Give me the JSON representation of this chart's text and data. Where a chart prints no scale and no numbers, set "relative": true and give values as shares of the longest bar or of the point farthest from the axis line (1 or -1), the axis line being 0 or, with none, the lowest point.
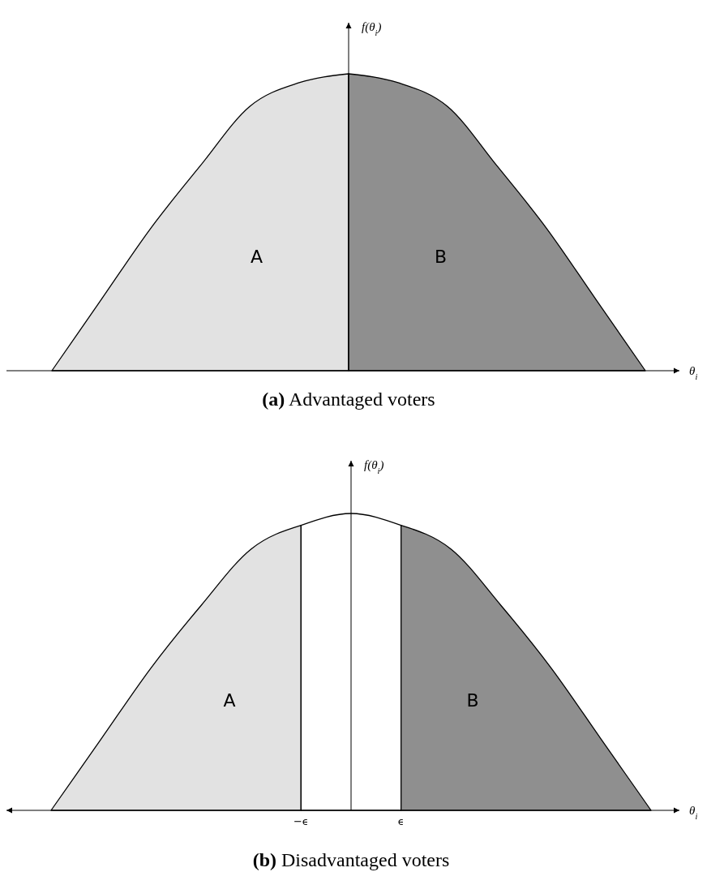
{
  "chart_data": [
    {
      "type": "area",
      "relative": true,
      "title": "(a) Advantaged voters",
      "xlabel": "θ$_{i}$",
      "ylabel": "f(θ$_{i}$)",
      "tick_labels": false,
      "categories": [
        null,
        null,
        null,
        null,
        null,
        null,
        null,
        null,
        null,
        null,
        null,
        null,
        null
      ],
      "series": [
        {
          "color": "#e2e2e2",
          "values": [
            0,
            0.24,
            0.48,
            0.69,
            0.89,
            0.97,
            1,
            null,
            null,
            null,
            null,
            null,
            null
          ]
        },
        {
          "color": "#8f8f8f",
          "values": [
            null,
            null,
            null,
            null,
            null,
            null,
            1,
            0.97,
            0.89,
            0.69,
            0.48,
            0.24,
            0
          ]
        }
      ],
      "annotations": [
        "A",
        "B"
      ]
    },
    {
      "type": "area",
      "relative": true,
      "title": "(b) Disadvantaged voters",
      "xlabel": "θ$_{i}$",
      "ylabel": "f(θ$_{i}$)",
      "tick_labels": "x",
      "categories": [
        null,
        null,
        null,
        null,
        null,
        "−ϵ",
        null,
        "ϵ",
        null,
        null,
        null,
        null,
        null
      ],
      "series": [
        {
          "color": "#e2e2e2",
          "values": [
            0,
            0.24,
            0.48,
            0.69,
            0.88,
            0.96,
            null,
            null,
            null,
            null,
            null,
            null,
            null
          ]
        },
        {
          "color": "#ffffff",
          "values": [
            null,
            null,
            null,
            null,
            null,
            0.96,
            1,
            0.96,
            null,
            null,
            null,
            null,
            null
          ]
        },
        {
          "color": "#8f8f8f",
          "values": [
            null,
            null,
            null,
            null,
            null,
            null,
            null,
            0.96,
            0.88,
            0.69,
            0.48,
            0.24,
            0
          ]
        }
      ],
      "annotations": [
        "A",
        "B"
      ]
    }
  ]
}
